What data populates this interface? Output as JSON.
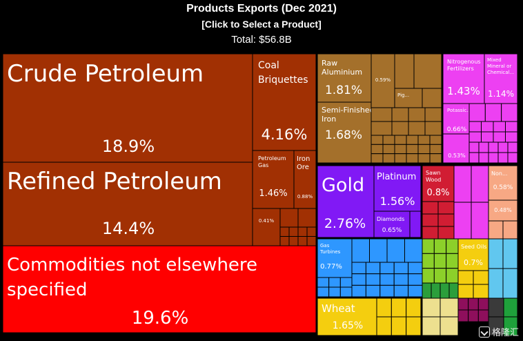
{
  "header": {
    "title": "Products Exports (Dec 2021)",
    "subtitle": "[Click to Select a Product]",
    "total": "Total: $56.8B"
  },
  "watermark": {
    "text": "格隆汇"
  },
  "chart_data": {
    "type": "treemap",
    "title": "Products Exports (Dec 2021)",
    "unit": "percent of total",
    "items": [
      {
        "name": "Crude Petroleum",
        "value": 18.9,
        "value_label": "18.9%",
        "color": "#a13003"
      },
      {
        "name": "Refined Petroleum",
        "value": 14.4,
        "value_label": "14.4%",
        "color": "#a13003"
      },
      {
        "name": "Commodities not elsewhere specified",
        "value": 19.6,
        "value_label": "19.6%",
        "color": "#ff0000"
      },
      {
        "name": "Coal Briquettes",
        "value": 4.16,
        "value_label": "4.16%",
        "color": "#a13003"
      },
      {
        "name": "Petroleum Gas",
        "value": 1.46,
        "value_label": "1.46%",
        "color": "#a13003"
      },
      {
        "name": "Iron Ore",
        "value": 0.88,
        "value_label": "0.88%",
        "color": "#a13003"
      },
      {
        "name": "",
        "value": 0.41,
        "value_label": "0.41%",
        "color": "#a13003"
      },
      {
        "name": "Raw Aluminium",
        "value": 1.81,
        "value_label": "1.81%",
        "color": "#a4702b"
      },
      {
        "name": "Semi-Finished Iron",
        "value": 1.68,
        "value_label": "1.68%",
        "color": "#a4702b"
      },
      {
        "name": "",
        "value": 0.59,
        "value_label": "0.59%",
        "color": "#a4702b"
      },
      {
        "name": "Pig...",
        "value": null,
        "value_label": "",
        "color": "#a4702b"
      },
      {
        "name": "Nitrogenous Fertilizers",
        "value": 1.43,
        "value_label": "1.43%",
        "color": "#ed40f2"
      },
      {
        "name": "Mixed Mineral or Chemical...",
        "value": 1.14,
        "value_label": "1.14%",
        "color": "#ed40f2"
      },
      {
        "name": "Potassic...",
        "value": 0.66,
        "value_label": "0.66%",
        "color": "#ed40f2"
      },
      {
        "name": "",
        "value": 0.53,
        "value_label": "0.53%",
        "color": "#ed40f2"
      },
      {
        "name": "Gold",
        "value": 2.76,
        "value_label": "2.76%",
        "color": "#8119f5"
      },
      {
        "name": "Platinum",
        "value": 1.56,
        "value_label": "1.56%",
        "color": "#8119f5"
      },
      {
        "name": "Diamonds",
        "value": 0.65,
        "value_label": "0.65%",
        "color": "#8119f5"
      },
      {
        "name": "Sawn Wood",
        "value": 0.8,
        "value_label": "0.8%",
        "color": "#d11d33"
      },
      {
        "name": "Non...",
        "value": 0.58,
        "value_label": "0.58%",
        "color": "#f7a884"
      },
      {
        "name": "",
        "value": 0.48,
        "value_label": "0.48%",
        "color": "#f7a884"
      },
      {
        "name": "Gas Turbines",
        "value": 0.77,
        "value_label": "0.77%",
        "color": "#2e97ff"
      },
      {
        "name": "Seed Oils",
        "value": 0.7,
        "value_label": "0.7%",
        "color": "#f4ce0f"
      },
      {
        "name": "Wheat",
        "value": 1.65,
        "value_label": "1.65%",
        "color": "#f4ce0f"
      }
    ]
  }
}
